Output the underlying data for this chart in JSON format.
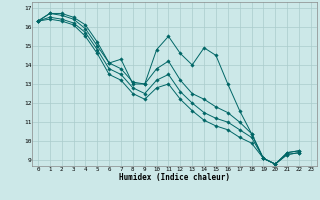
{
  "title": "",
  "xlabel": "Humidex (Indice chaleur)",
  "bg_color": "#cce8e8",
  "grid_color": "#aacccc",
  "line_color": "#006666",
  "xlim": [
    -0.5,
    23.5
  ],
  "ylim": [
    8.7,
    17.3
  ],
  "xticks": [
    0,
    1,
    2,
    3,
    4,
    5,
    6,
    7,
    8,
    9,
    10,
    11,
    12,
    13,
    14,
    15,
    16,
    17,
    18,
    19,
    20,
    21,
    22,
    23
  ],
  "yticks": [
    9,
    10,
    11,
    12,
    13,
    14,
    15,
    16,
    17
  ],
  "series": [
    [
      16.3,
      16.7,
      16.7,
      16.5,
      16.1,
      15.2,
      14.1,
      14.3,
      13.0,
      13.0,
      14.8,
      15.5,
      14.6,
      14.0,
      14.9,
      14.5,
      13.0,
      11.6,
      10.4,
      9.1,
      8.8,
      9.4,
      9.5
    ],
    [
      16.3,
      16.7,
      16.6,
      16.4,
      15.9,
      15.0,
      14.1,
      13.8,
      13.1,
      13.0,
      13.8,
      14.2,
      13.2,
      12.5,
      12.2,
      11.8,
      11.5,
      11.0,
      10.4,
      9.1,
      8.8,
      9.4,
      9.5
    ],
    [
      16.3,
      16.5,
      16.4,
      16.2,
      15.7,
      14.8,
      13.8,
      13.5,
      12.8,
      12.5,
      13.2,
      13.5,
      12.6,
      12.0,
      11.5,
      11.2,
      11.0,
      10.6,
      10.2,
      9.1,
      8.8,
      9.3,
      9.4
    ],
    [
      16.3,
      16.4,
      16.3,
      16.1,
      15.5,
      14.6,
      13.5,
      13.2,
      12.5,
      12.2,
      12.8,
      13.0,
      12.2,
      11.6,
      11.1,
      10.8,
      10.6,
      10.2,
      9.9,
      9.1,
      8.8,
      9.3,
      9.4
    ]
  ]
}
